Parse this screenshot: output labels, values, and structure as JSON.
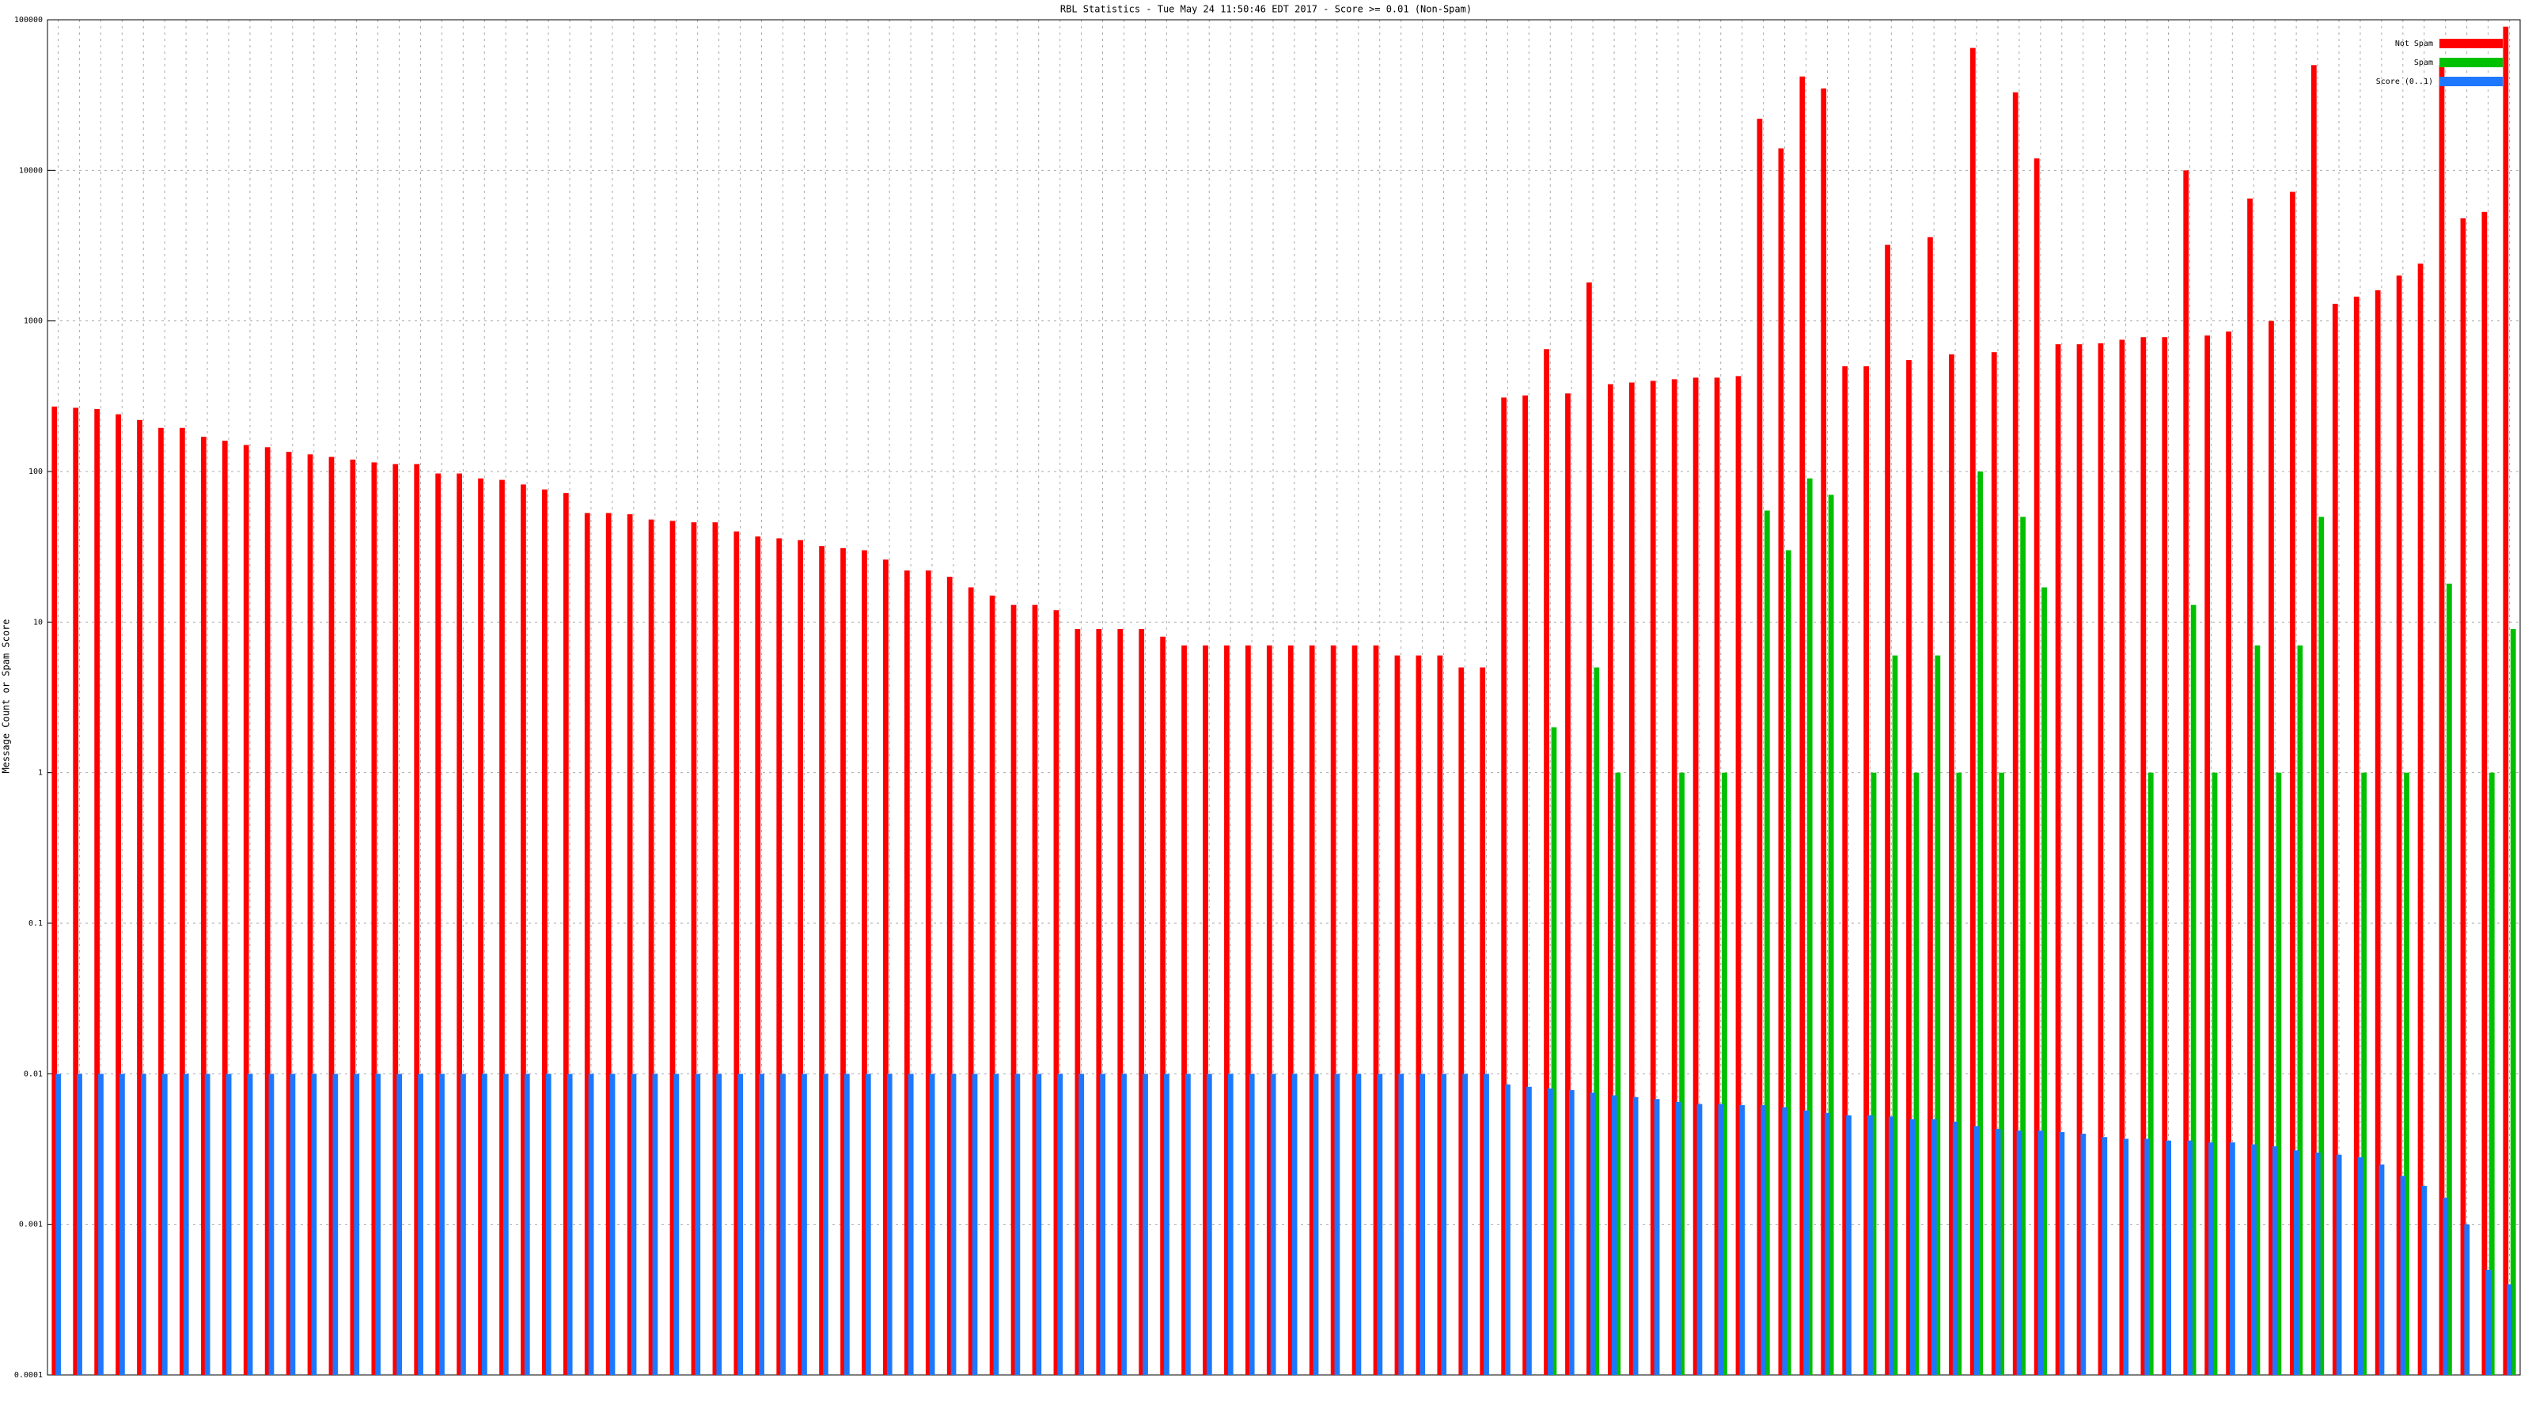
{
  "chart_data": {
    "type": "bar",
    "log_scale": true,
    "grid": true,
    "legend": "top-right",
    "title": "RBL Statistics - Tue May 24 11:50:46 EDT 2017 - Score >= 0.01 (Non-Spam)",
    "y_label": "Message Count or Spam Score",
    "ylim": [
      0.0001,
      100000
    ],
    "yticks": [
      0.0001,
      0.001,
      0.01,
      0.1,
      1,
      10,
      100,
      1000,
      10000,
      100000
    ],
    "categories": [
      null,
      null,
      null,
      null,
      null,
      null,
      null,
      null,
      null,
      null,
      null,
      null,
      null,
      null,
      null,
      null,
      null,
      null,
      null,
      null,
      null,
      null,
      null,
      null,
      null,
      null,
      null,
      null,
      null,
      null,
      null,
      null,
      null,
      null,
      null,
      null,
      null,
      null,
      null,
      null,
      null,
      null,
      null,
      null,
      null,
      null,
      null,
      null,
      null,
      null,
      null,
      null,
      null,
      null,
      null,
      null,
      null,
      null,
      null,
      null,
      null,
      null,
      null,
      null,
      null,
      null,
      null,
      null,
      null,
      null,
      null,
      null,
      null,
      null,
      null,
      null,
      null,
      null,
      null,
      null,
      null,
      null,
      null,
      null,
      null,
      null,
      null,
      null,
      null,
      null,
      null,
      null,
      null,
      null,
      null,
      null,
      null,
      null,
      null,
      null,
      null,
      null,
      null,
      null,
      null,
      null,
      null,
      null,
      null,
      null,
      null,
      null,
      null,
      null,
      null,
      null
    ],
    "series": [
      {
        "name": "Not Spam",
        "color": "#ff0000",
        "values": [
          270,
          265,
          260,
          240,
          220,
          195,
          195,
          170,
          160,
          150,
          145,
          135,
          130,
          125,
          120,
          115,
          112,
          112,
          97,
          97,
          90,
          88,
          82,
          76,
          72,
          53,
          53,
          52,
          48,
          47,
          46,
          46,
          40,
          37,
          36,
          35,
          32,
          31,
          30,
          26,
          22,
          22,
          20,
          17,
          15,
          13,
          13,
          12,
          9,
          9,
          9,
          9,
          8,
          7,
          7,
          7,
          7,
          7,
          7,
          7,
          7,
          7,
          7,
          6,
          6,
          6,
          5,
          5,
          310,
          320,
          650,
          330,
          1800,
          380,
          390,
          400,
          410,
          420,
          420,
          430,
          22000,
          14000,
          42000,
          35000,
          500,
          500,
          3200,
          550,
          3600,
          600,
          65000,
          620,
          33000,
          12000,
          700,
          700,
          710,
          750,
          780,
          780,
          10000,
          800,
          850,
          6500,
          1000,
          7200,
          50000,
          1300,
          1450,
          1600,
          2000,
          2400,
          50000,
          4800,
          5300,
          90000
        ]
      },
      {
        "name": "Spam",
        "color": "#00c000",
        "values": [
          null,
          null,
          null,
          null,
          null,
          null,
          null,
          null,
          null,
          null,
          null,
          null,
          null,
          null,
          null,
          null,
          null,
          null,
          null,
          null,
          null,
          null,
          null,
          null,
          null,
          null,
          null,
          null,
          null,
          null,
          null,
          null,
          null,
          null,
          null,
          null,
          null,
          null,
          null,
          null,
          null,
          null,
          null,
          null,
          null,
          null,
          null,
          null,
          null,
          null,
          null,
          null,
          null,
          null,
          null,
          null,
          null,
          null,
          null,
          null,
          null,
          null,
          null,
          null,
          null,
          null,
          null,
          null,
          null,
          null,
          2,
          null,
          5,
          1,
          null,
          null,
          1,
          null,
          1,
          null,
          55,
          30,
          90,
          70,
          null,
          1,
          6,
          1,
          6,
          1,
          100,
          1,
          50,
          17,
          null,
          null,
          null,
          null,
          1,
          null,
          13,
          1,
          null,
          7,
          1,
          7,
          50,
          null,
          1,
          null,
          1,
          null,
          18,
          null,
          1,
          9
        ]
      },
      {
        "name": "Score (0..1)",
        "color": "#1e78ff",
        "values": [
          0.01,
          0.01,
          0.01,
          0.01,
          0.01,
          0.01,
          0.01,
          0.01,
          0.01,
          0.01,
          0.01,
          0.01,
          0.01,
          0.01,
          0.01,
          0.01,
          0.01,
          0.01,
          0.01,
          0.01,
          0.01,
          0.01,
          0.01,
          0.01,
          0.01,
          0.01,
          0.01,
          0.01,
          0.01,
          0.01,
          0.01,
          0.01,
          0.01,
          0.01,
          0.01,
          0.01,
          0.01,
          0.01,
          0.01,
          0.01,
          0.01,
          0.01,
          0.01,
          0.01,
          0.01,
          0.01,
          0.01,
          0.01,
          0.01,
          0.01,
          0.01,
          0.01,
          0.01,
          0.01,
          0.01,
          0.01,
          0.01,
          0.01,
          0.01,
          0.01,
          0.01,
          0.01,
          0.01,
          0.01,
          0.01,
          0.01,
          0.01,
          0.01,
          0.0085,
          0.0082,
          0.008,
          0.0078,
          0.0075,
          0.0072,
          0.007,
          0.0068,
          0.0065,
          0.0063,
          0.0063,
          0.0062,
          0.0062,
          0.006,
          0.0057,
          0.0055,
          0.0053,
          0.0053,
          0.0052,
          0.005,
          0.005,
          0.0048,
          0.0045,
          0.0043,
          0.0042,
          0.0042,
          0.0041,
          0.004,
          0.0038,
          0.0037,
          0.0037,
          0.0036,
          0.0036,
          0.0035,
          0.0035,
          0.0034,
          0.0033,
          0.0031,
          0.003,
          0.0029,
          0.0028,
          0.0025,
          0.0021,
          0.0018,
          0.0015,
          0.001,
          0.0005,
          0.0004
        ]
      }
    ]
  }
}
